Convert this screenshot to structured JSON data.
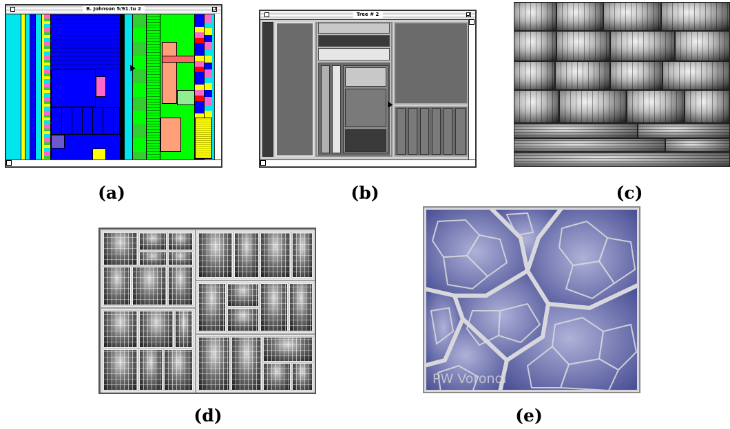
{
  "captions": {
    "a": "(a)",
    "b": "(b)",
    "c": "(c)",
    "d": "(d)",
    "e": "(e)"
  },
  "window_a": {
    "title": "B. Johnson 5/91.tu 2"
  },
  "window_b": {
    "title": "Tree # 2"
  },
  "voronoi": {
    "watermark": "PW Voronoi"
  },
  "colors": {
    "treemap_a": [
      "#00e5ee",
      "#0000ff",
      "#ff0000",
      "#00ff00",
      "#ffff00",
      "#ff66cc",
      "#ffa07a",
      "#32cd32",
      "#90ee90"
    ],
    "treemap_b_grays": [
      "#3a3a3a",
      "#6b6b6b",
      "#9a9a9a",
      "#c8c8c8",
      "#e6e6e6"
    ],
    "voronoi_fill": "#5c63a8",
    "voronoi_border": "#d8d8dc"
  },
  "icons": [
    "close-box-icon",
    "zoom-box-icon",
    "arrow-cursor-icon",
    "scroll-arrow-icon"
  ]
}
